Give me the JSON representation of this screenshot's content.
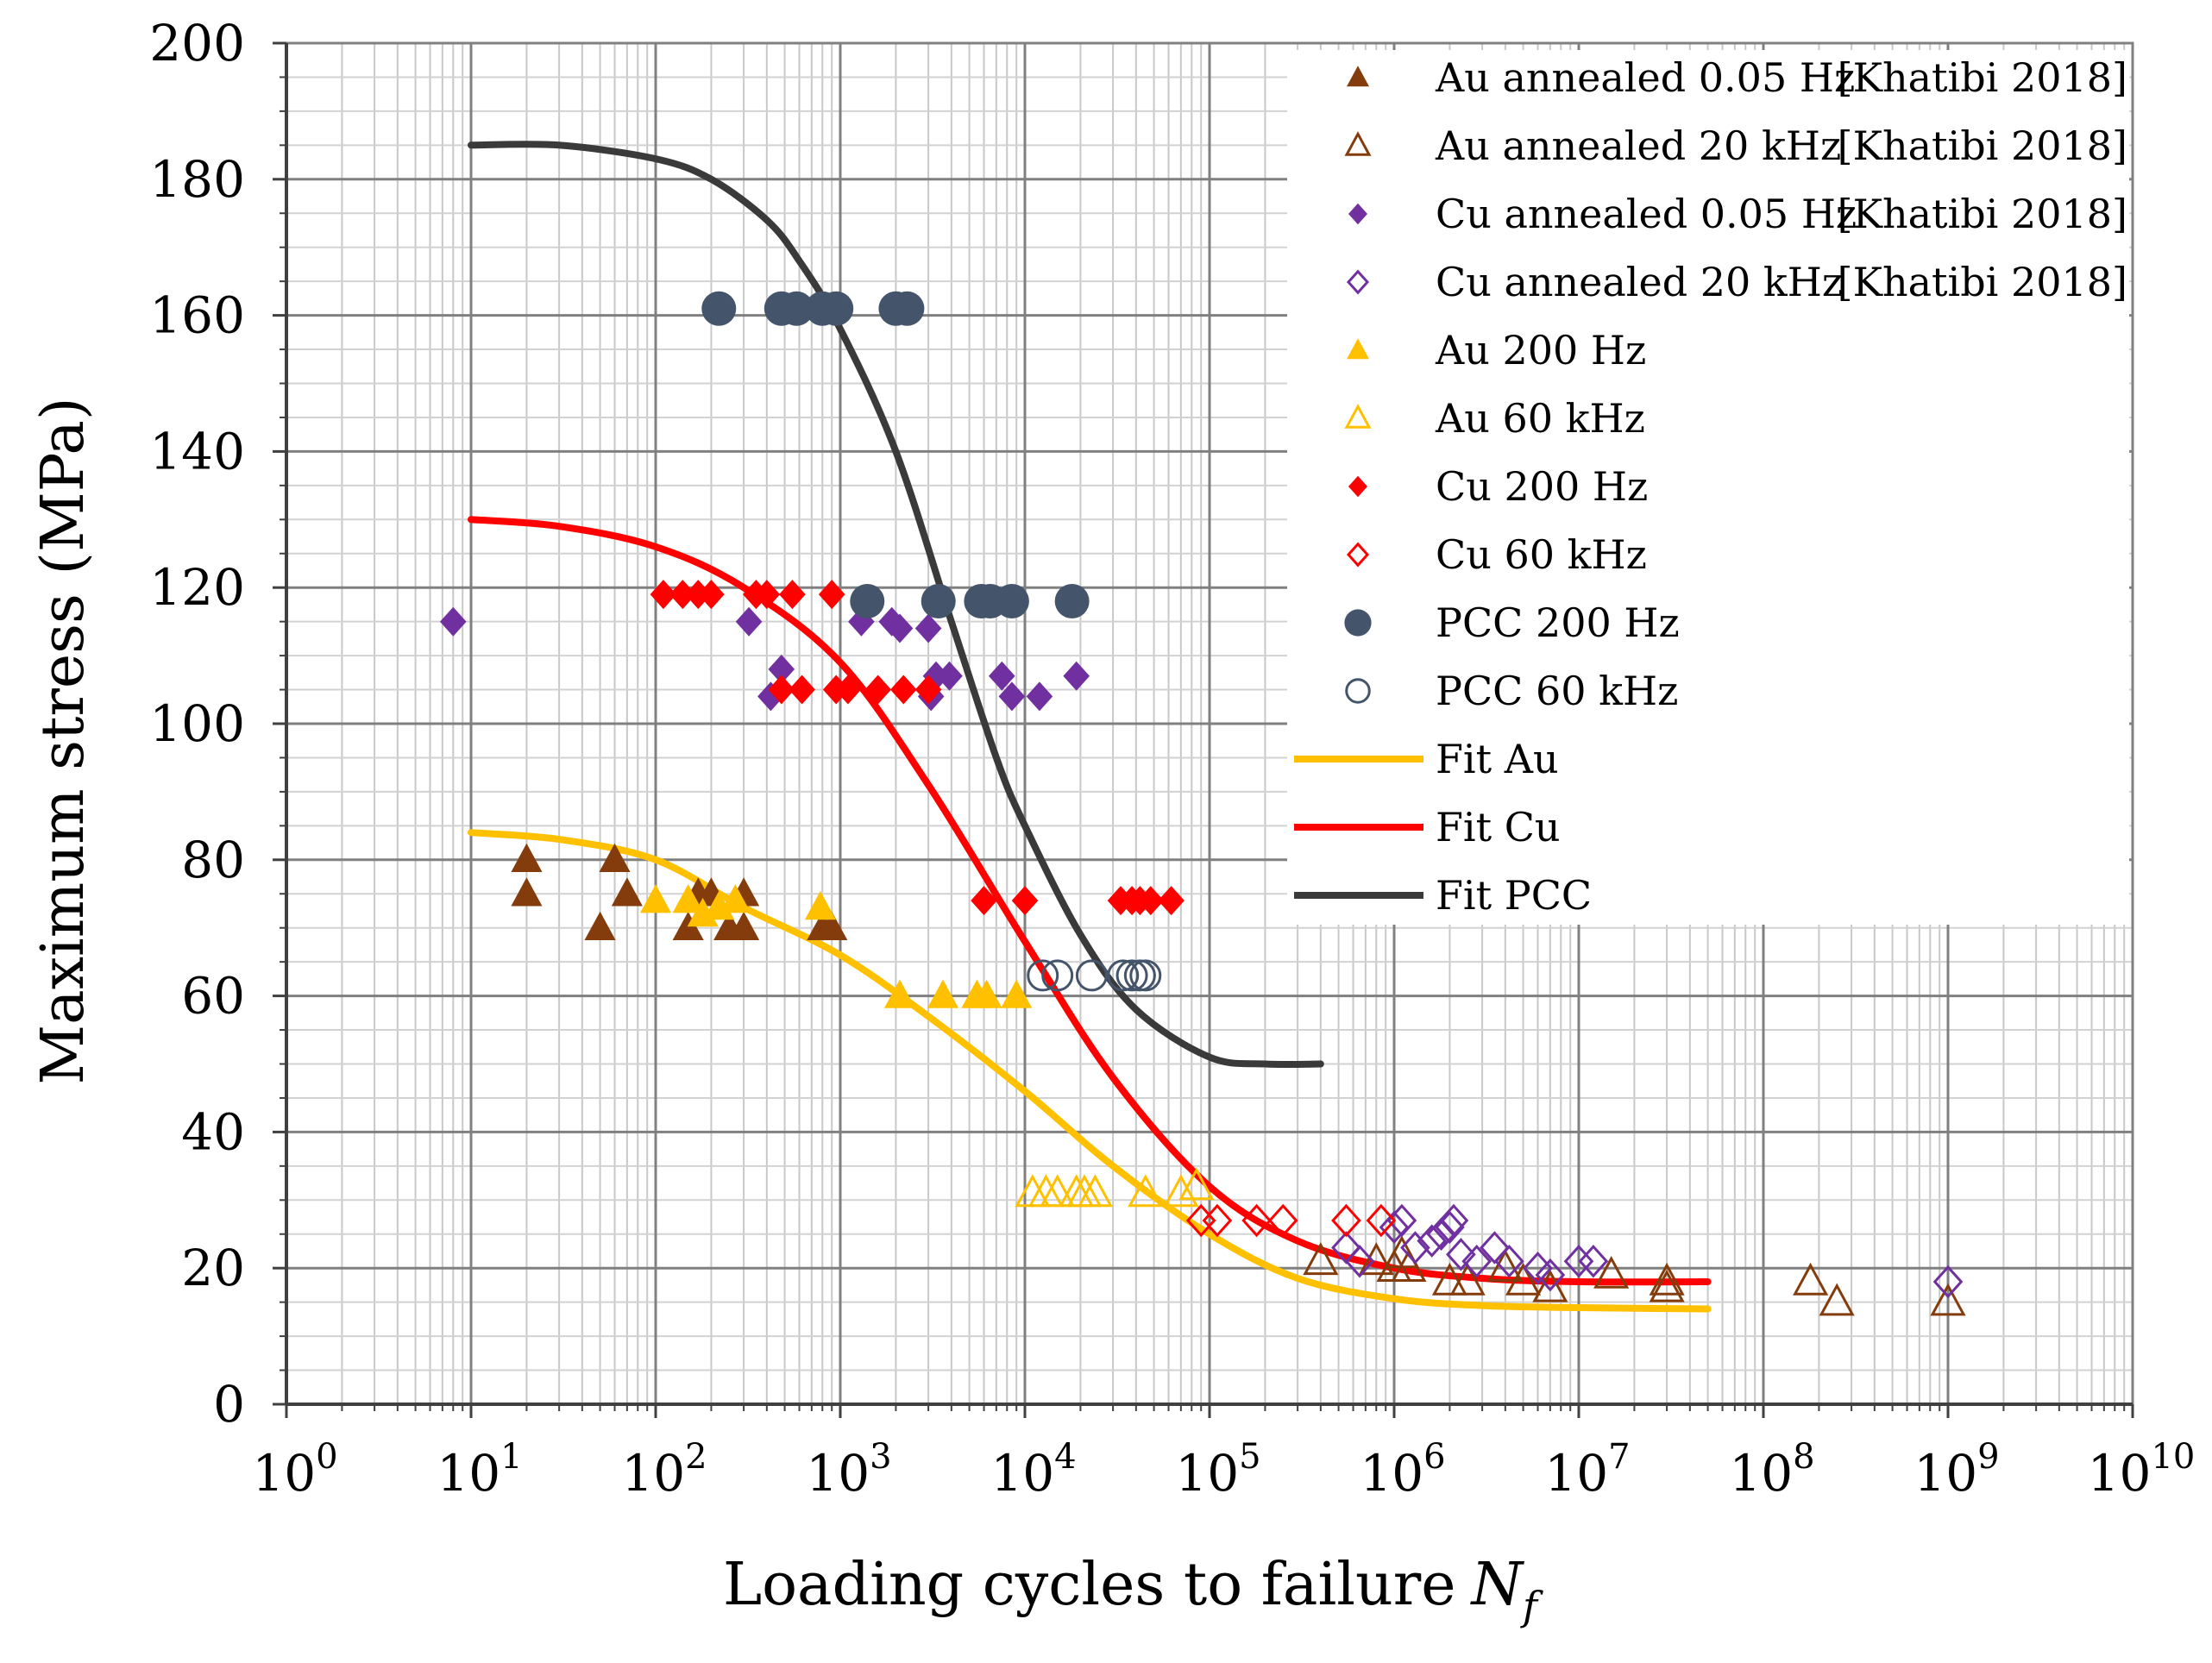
{
  "chart_data": {
    "type": "scatter",
    "xscale": "log",
    "xlim": [
      1,
      10000000000
    ],
    "ylim": [
      0,
      200
    ],
    "xlabel": "Loading cycles to failure",
    "xlabel_symbol": "N",
    "xlabel_subscript": "f",
    "ylabel": "Maximum stress (MPa)",
    "grid": true,
    "legend": "top-right",
    "y_ticks": [
      "0",
      "20",
      "40",
      "60",
      "80",
      "100",
      "120",
      "140",
      "160",
      "180",
      "200"
    ],
    "x_ticks": [
      {
        "base": "10",
        "exp": "0"
      },
      {
        "base": "10",
        "exp": "1"
      },
      {
        "base": "10",
        "exp": "2"
      },
      {
        "base": "10",
        "exp": "3"
      },
      {
        "base": "10",
        "exp": "4"
      },
      {
        "base": "10",
        "exp": "5"
      },
      {
        "base": "10",
        "exp": "6"
      },
      {
        "base": "10",
        "exp": "7"
      },
      {
        "base": "10",
        "exp": "8"
      },
      {
        "base": "10",
        "exp": "9"
      },
      {
        "base": "10",
        "exp": "10"
      }
    ],
    "series": [
      {
        "id": "au-ann-005",
        "name": "Au annealed 0.05 Hz",
        "ref": "[Khatibi 2018]",
        "marker": "triangle",
        "filled": true,
        "color": "#843C0C",
        "points": [
          [
            20,
            80
          ],
          [
            20,
            75
          ],
          [
            50,
            70
          ],
          [
            60,
            80
          ],
          [
            70,
            75
          ],
          [
            150,
            70
          ],
          [
            170,
            75
          ],
          [
            200,
            75
          ],
          [
            250,
            70
          ],
          [
            300,
            70
          ],
          [
            300,
            75
          ],
          [
            800,
            70
          ],
          [
            900,
            70
          ]
        ]
      },
      {
        "id": "au-ann-20k",
        "name": "Au annealed 20 kHz",
        "ref": "[Khatibi 2018]",
        "marker": "triangle",
        "filled": false,
        "color": "#843C0C",
        "points": [
          [
            400000,
            21
          ],
          [
            800000,
            21
          ],
          [
            1000000,
            20
          ],
          [
            1100000,
            22
          ],
          [
            1200000,
            20
          ],
          [
            2000000,
            18
          ],
          [
            2500000,
            18
          ],
          [
            4000000,
            20
          ],
          [
            5000000,
            18
          ],
          [
            7000000,
            17
          ],
          [
            15000000,
            19
          ],
          [
            30000000,
            17
          ],
          [
            30000000,
            18
          ],
          [
            180000000,
            18
          ],
          [
            250000000,
            15
          ],
          [
            1000000000,
            15
          ]
        ]
      },
      {
        "id": "cu-ann-005",
        "name": "Cu annealed 0.05 Hz",
        "ref": "[Khatibi 2018]",
        "marker": "diamond",
        "filled": true,
        "color": "#7030A0",
        "points": [
          [
            8,
            115
          ],
          [
            320,
            115
          ],
          [
            420,
            104
          ],
          [
            480,
            108
          ],
          [
            1300,
            115
          ],
          [
            1900,
            115
          ],
          [
            2100,
            114
          ],
          [
            3000,
            114
          ],
          [
            3100,
            104
          ],
          [
            3300,
            107
          ],
          [
            3900,
            107
          ],
          [
            7500,
            107
          ],
          [
            8500,
            104
          ],
          [
            12000,
            104
          ],
          [
            19000,
            107
          ]
        ]
      },
      {
        "id": "cu-ann-20k",
        "name": "Cu annealed 20 kHz",
        "ref": "[Khatibi 2018]",
        "marker": "diamond",
        "filled": false,
        "color": "#7030A0",
        "points": [
          [
            550000,
            23
          ],
          [
            650000,
            21
          ],
          [
            1000000,
            26
          ],
          [
            1100000,
            27
          ],
          [
            1300000,
            23
          ],
          [
            1600000,
            24
          ],
          [
            1800000,
            25
          ],
          [
            2000000,
            26
          ],
          [
            2100000,
            27
          ],
          [
            2300000,
            22
          ],
          [
            2800000,
            21
          ],
          [
            3500000,
            23
          ],
          [
            4200000,
            21
          ],
          [
            6000000,
            20
          ],
          [
            7000000,
            19
          ],
          [
            10000000,
            21
          ],
          [
            12000000,
            21
          ],
          [
            1000000000,
            18
          ]
        ]
      },
      {
        "id": "au-200",
        "name": "Au 200 Hz",
        "marker": "triangle",
        "filled": true,
        "color": "#FFC000",
        "points": [
          [
            100,
            74
          ],
          [
            150,
            74
          ],
          [
            180,
            72
          ],
          [
            220,
            73
          ],
          [
            270,
            74
          ],
          [
            780,
            73
          ],
          [
            2100,
            60
          ],
          [
            3600,
            60
          ],
          [
            5500,
            60
          ],
          [
            6200,
            60
          ],
          [
            9000,
            60
          ]
        ]
      },
      {
        "id": "au-60k",
        "name": "Au 60 kHz",
        "marker": "triangle",
        "filled": false,
        "color": "#FFC000",
        "points": [
          [
            11000,
            31
          ],
          [
            13000,
            31
          ],
          [
            15000,
            31
          ],
          [
            19000,
            31
          ],
          [
            21000,
            31
          ],
          [
            24000,
            31
          ],
          [
            45000,
            31
          ],
          [
            70000,
            31
          ],
          [
            85000,
            32
          ]
        ]
      },
      {
        "id": "cu-200",
        "name": "Cu 200 Hz",
        "marker": "diamond",
        "filled": true,
        "color": "#FF0000",
        "points": [
          [
            110,
            119
          ],
          [
            140,
            119
          ],
          [
            170,
            119
          ],
          [
            200,
            119
          ],
          [
            350,
            119
          ],
          [
            400,
            119
          ],
          [
            550,
            119
          ],
          [
            900,
            119
          ],
          [
            480,
            105
          ],
          [
            620,
            105
          ],
          [
            950,
            105
          ],
          [
            1100,
            105
          ],
          [
            1600,
            105
          ],
          [
            2200,
            105
          ],
          [
            3000,
            105
          ],
          [
            6000,
            74
          ],
          [
            10000,
            74
          ],
          [
            33000,
            74
          ],
          [
            38000,
            74
          ],
          [
            42000,
            74
          ],
          [
            48000,
            74
          ],
          [
            62000,
            74
          ]
        ]
      },
      {
        "id": "cu-60k",
        "name": "Cu 60 kHz",
        "marker": "diamond",
        "filled": false,
        "color": "#FF0000",
        "points": [
          [
            90000,
            27
          ],
          [
            110000,
            27
          ],
          [
            180000,
            27
          ],
          [
            250000,
            27
          ],
          [
            550000,
            27
          ],
          [
            850000,
            27
          ]
        ]
      },
      {
        "id": "pcc-200",
        "name": "PCC 200 Hz",
        "marker": "circle",
        "filled": true,
        "color": "#44546A",
        "points": [
          [
            220,
            161
          ],
          [
            480,
            161
          ],
          [
            580,
            161
          ],
          [
            800,
            161
          ],
          [
            950,
            161
          ],
          [
            2000,
            161
          ],
          [
            2300,
            161
          ],
          [
            1400,
            118
          ],
          [
            3400,
            118
          ],
          [
            5800,
            118
          ],
          [
            6500,
            118
          ],
          [
            8500,
            118
          ],
          [
            18000,
            118
          ]
        ]
      },
      {
        "id": "pcc-60k",
        "name": "PCC 60 kHz",
        "marker": "circle",
        "filled": false,
        "color": "#44546A",
        "points": [
          [
            12500,
            63
          ],
          [
            15000,
            63
          ],
          [
            23000,
            63
          ],
          [
            34000,
            63
          ],
          [
            38000,
            63
          ],
          [
            42000,
            63
          ],
          [
            45000,
            63
          ]
        ]
      }
    ],
    "fits": [
      {
        "id": "fit-au",
        "name": "Fit Au",
        "color": "#FFC000",
        "points": [
          [
            10,
            84
          ],
          [
            30,
            83
          ],
          [
            100,
            80
          ],
          [
            300,
            73
          ],
          [
            1000,
            66
          ],
          [
            3000,
            57
          ],
          [
            10000,
            46
          ],
          [
            30000,
            35
          ],
          [
            100000,
            25
          ],
          [
            300000,
            18.5
          ],
          [
            1000000,
            15.5
          ],
          [
            3000000,
            14.5
          ],
          [
            10000000,
            14.2
          ],
          [
            50000000,
            14
          ]
        ]
      },
      {
        "id": "fit-cu",
        "name": "Fit Cu",
        "color": "#FF0000",
        "points": [
          [
            10,
            130
          ],
          [
            30,
            129
          ],
          [
            100,
            126
          ],
          [
            300,
            120
          ],
          [
            1000,
            109
          ],
          [
            3000,
            91
          ],
          [
            10000,
            68
          ],
          [
            30000,
            48
          ],
          [
            100000,
            32
          ],
          [
            300000,
            24
          ],
          [
            1000000,
            20
          ],
          [
            3000000,
            18.5
          ],
          [
            10000000,
            18
          ],
          [
            50000000,
            18
          ]
        ]
      },
      {
        "id": "fit-pcc",
        "name": "Fit PCC",
        "color": "#3A3A3A",
        "points": [
          [
            10,
            185
          ],
          [
            30,
            185
          ],
          [
            100,
            183
          ],
          [
            200,
            180
          ],
          [
            400,
            174
          ],
          [
            600,
            168
          ],
          [
            1000,
            158
          ],
          [
            2000,
            140
          ],
          [
            4000,
            115
          ],
          [
            7000,
            95
          ],
          [
            10000,
            85
          ],
          [
            20000,
            69
          ],
          [
            40000,
            58
          ],
          [
            100000,
            51
          ],
          [
            200000,
            50
          ],
          [
            400000,
            50
          ]
        ]
      }
    ]
  }
}
